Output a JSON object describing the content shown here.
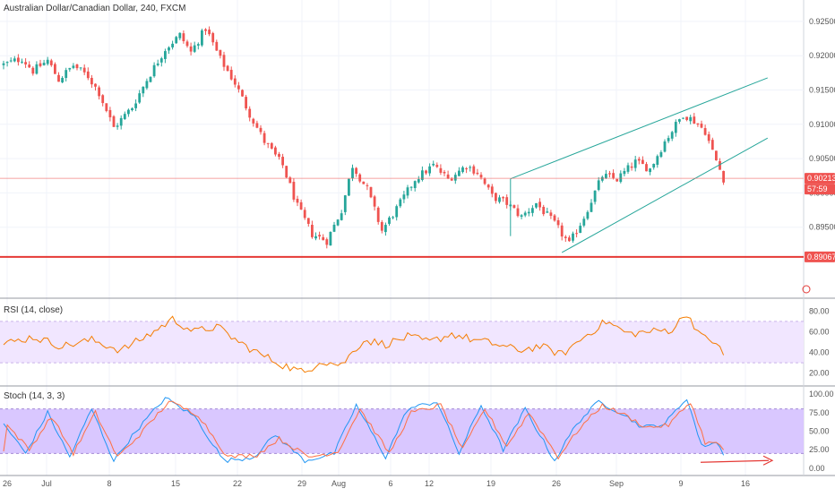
{
  "header": {
    "title": "Australian Dollar/Canadian Dollar, 240, FXCM"
  },
  "indicators": {
    "rsi_title": "RSI (14, close)",
    "stoch_title": "Stoch (14, 3, 3)"
  },
  "price_tags": {
    "current_price": "0.90213",
    "countdown": "57:59",
    "support_price": "0.89067"
  },
  "colors": {
    "up_candle": "#26a69a",
    "down_candle": "#ef5350",
    "channel_line": "#26a69a",
    "support_line": "#e53935",
    "rsi_line": "#f57c00",
    "rsi_band": "#f1e6ff",
    "stoch_band": "#d9c7ff",
    "stoch_k": "#2196f3",
    "stoch_d": "#ff7043",
    "arrow": "#e53935"
  },
  "chart_data": [
    {
      "type": "candlestick",
      "title": "Australian Dollar/Canadian Dollar, 240, FXCM",
      "x_ticks": [
        "26",
        "Jul",
        "8",
        "15",
        "22",
        "29",
        "Aug",
        "6",
        "12",
        "19",
        "26",
        "Sep",
        "9",
        "16"
      ],
      "ylim": [
        0.8853,
        0.9276
      ],
      "y_ticks": [
        "0.92500",
        "0.92000",
        "0.91500",
        "0.91000",
        "0.90500",
        "0.90000",
        "0.89500"
      ],
      "close_path": [
        [
          0,
          0.9187
        ],
        [
          5,
          0.9196
        ],
        [
          8,
          0.9178
        ],
        [
          12,
          0.9193
        ],
        [
          15,
          0.9165
        ],
        [
          19,
          0.9186
        ],
        [
          23,
          0.917
        ],
        [
          26,
          0.9146
        ],
        [
          30,
          0.9095
        ],
        [
          35,
          0.9125
        ],
        [
          39,
          0.9165
        ],
        [
          44,
          0.921
        ],
        [
          48,
          0.923
        ],
        [
          51,
          0.9205
        ],
        [
          55,
          0.924
        ],
        [
          59,
          0.9195
        ],
        [
          63,
          0.916
        ],
        [
          67,
          0.9115
        ],
        [
          71,
          0.9075
        ],
        [
          76,
          0.904
        ],
        [
          80,
          0.898
        ],
        [
          84,
          0.894
        ],
        [
          88,
          0.893
        ],
        [
          92,
          0.8975
        ],
        [
          95,
          0.904
        ],
        [
          99,
          0.9005
        ],
        [
          103,
          0.8945
        ],
        [
          108,
          0.8985
        ],
        [
          112,
          0.902
        ],
        [
          117,
          0.904
        ],
        [
          121,
          0.902
        ],
        [
          126,
          0.904
        ],
        [
          129,
          0.903
        ],
        [
          133,
          0.8995
        ],
        [
          137,
          0.8985
        ],
        [
          141,
          0.8965
        ],
        [
          145,
          0.8985
        ],
        [
          150,
          0.8955
        ],
        [
          154,
          0.8925
        ],
        [
          158,
          0.8965
        ],
        [
          163,
          0.9025
        ],
        [
          167,
          0.902
        ],
        [
          172,
          0.9045
        ],
        [
          176,
          0.9035
        ],
        [
          180,
          0.9075
        ],
        [
          185,
          0.9115
        ],
        [
          188,
          0.9105
        ],
        [
          191,
          0.909
        ],
        [
          193,
          0.906
        ],
        [
          196,
          0.9021
        ]
      ],
      "channel": {
        "lower": [
          [
            152,
            0.89131
          ],
          [
            208,
            0.908
          ]
        ],
        "upper": [
          [
            138,
            0.90205
          ],
          [
            208,
            0.91677
          ]
        ],
        "anchor": [
          [
            138,
            0.90205
          ],
          [
            138,
            0.8937
          ]
        ]
      },
      "current_price": 0.90213,
      "support_level": 0.89067
    },
    {
      "type": "line",
      "title": "RSI (14, close)",
      "ylim": [
        12,
        88
      ],
      "y_ticks": [
        "80.00",
        "60.00",
        "40.00",
        "20.00"
      ],
      "band": [
        30,
        70
      ],
      "values_path": [
        [
          0,
          48
        ],
        [
          8,
          55
        ],
        [
          16,
          46
        ],
        [
          24,
          52
        ],
        [
          32,
          42
        ],
        [
          40,
          58
        ],
        [
          46,
          72
        ],
        [
          52,
          60
        ],
        [
          58,
          65
        ],
        [
          64,
          50
        ],
        [
          70,
          38
        ],
        [
          76,
          28
        ],
        [
          82,
          20
        ],
        [
          86,
          32
        ],
        [
          92,
          28
        ],
        [
          98,
          52
        ],
        [
          104,
          48
        ],
        [
          110,
          55
        ],
        [
          116,
          50
        ],
        [
          122,
          58
        ],
        [
          128,
          52
        ],
        [
          134,
          48
        ],
        [
          140,
          42
        ],
        [
          146,
          46
        ],
        [
          152,
          38
        ],
        [
          158,
          55
        ],
        [
          164,
          70
        ],
        [
          170,
          58
        ],
        [
          176,
          60
        ],
        [
          182,
          62
        ],
        [
          186,
          78
        ],
        [
          190,
          55
        ],
        [
          194,
          50
        ],
        [
          196,
          36
        ]
      ]
    },
    {
      "type": "line",
      "title": "Stoch (14, 3, 3)",
      "ylim": [
        -5,
        105
      ],
      "y_ticks": [
        "100.00",
        "75.00",
        "50.00",
        "25.00",
        "0.00"
      ],
      "band": [
        20,
        80
      ],
      "series": [
        {
          "values_path": [
            [
              0,
              60
            ],
            [
              6,
              20
            ],
            [
              12,
              75
            ],
            [
              18,
              15
            ],
            [
              24,
              80
            ],
            [
              30,
              10
            ],
            [
              36,
              50
            ],
            [
              44,
              95
            ],
            [
              52,
              70
            ],
            [
              60,
              10
            ],
            [
              68,
              15
            ],
            [
              74,
              45
            ],
            [
              82,
              10
            ],
            [
              90,
              20
            ],
            [
              96,
              85
            ],
            [
              104,
              15
            ],
            [
              110,
              80
            ],
            [
              118,
              90
            ],
            [
              124,
              20
            ],
            [
              130,
              85
            ],
            [
              136,
              25
            ],
            [
              142,
              80
            ],
            [
              150,
              10
            ],
            [
              156,
              60
            ],
            [
              162,
              90
            ],
            [
              168,
              75
            ],
            [
              174,
              55
            ],
            [
              180,
              60
            ],
            [
              186,
              95
            ],
            [
              190,
              30
            ],
            [
              194,
              35
            ],
            [
              196,
              20
            ]
          ]
        },
        {
          "values_path": [
            [
              1,
              58
            ],
            [
              7,
              25
            ],
            [
              13,
              70
            ],
            [
              19,
              20
            ],
            [
              25,
              75
            ],
            [
              31,
              15
            ],
            [
              37,
              45
            ],
            [
              45,
              90
            ],
            [
              53,
              72
            ],
            [
              61,
              15
            ],
            [
              69,
              18
            ],
            [
              75,
              40
            ],
            [
              83,
              15
            ],
            [
              91,
              22
            ],
            [
              97,
              80
            ],
            [
              105,
              20
            ],
            [
              111,
              75
            ],
            [
              119,
              85
            ],
            [
              125,
              25
            ],
            [
              131,
              80
            ],
            [
              137,
              30
            ],
            [
              143,
              75
            ],
            [
              151,
              15
            ],
            [
              157,
              55
            ],
            [
              163,
              85
            ],
            [
              169,
              72
            ],
            [
              175,
              55
            ],
            [
              181,
              58
            ],
            [
              187,
              90
            ],
            [
              191,
              35
            ],
            [
              195,
              32
            ],
            [
              196,
              25
            ]
          ]
        }
      ]
    }
  ]
}
